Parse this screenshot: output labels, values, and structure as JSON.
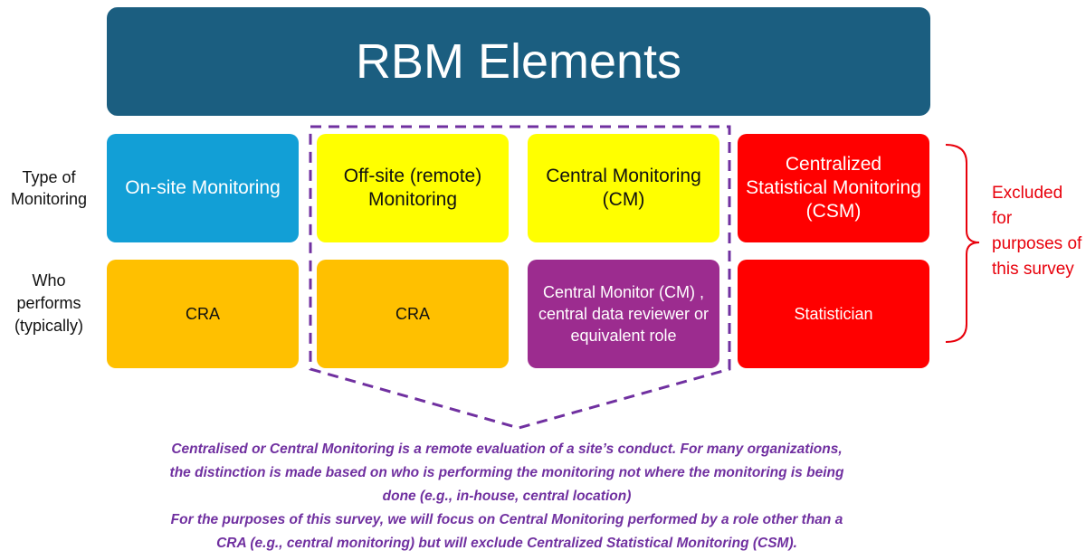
{
  "title": "RBM Elements",
  "row_labels": {
    "type": "Type of Monitoring",
    "who": "Who performs (typically)"
  },
  "columns": [
    {
      "type": "On-site Monitoring",
      "who": "CRA",
      "type_color": "#129fd6",
      "who_color": "#ffc000"
    },
    {
      "type": "Off-site (remote) Monitoring",
      "who": "CRA",
      "type_color": "#ffff00",
      "who_color": "#ffc000"
    },
    {
      "type": "Central Monitoring (CM)",
      "who": "Central Monitor (CM) , central data reviewer or equivalent role",
      "type_color": "#ffff00",
      "who_color": "#9c2c8f"
    },
    {
      "type": "Centralized Statistical Monitoring (CSM)",
      "who": "Statistician",
      "type_color": "#ff0000",
      "who_color": "#ff0000"
    }
  ],
  "excluded_note": "Excluded for purposes of this survey",
  "footnote": {
    "lines": [
      "Centralised or Central Monitoring is a remote evaluation of a site’s conduct.  For many organizations,",
      "the distinction is made based on who is performing the monitoring not where the monitoring is being",
      "done (e.g., in-house, central location)",
      "For the purposes of this survey, we will focus on Central Monitoring performed by a role other than a",
      "CRA (e.g., central monitoring) but will exclude Centralized Statistical Monitoring (CSM)."
    ]
  },
  "colors": {
    "title_bg": "#1b5e80",
    "focus_outline": "#7030a0",
    "excluded": "#e8000b"
  }
}
